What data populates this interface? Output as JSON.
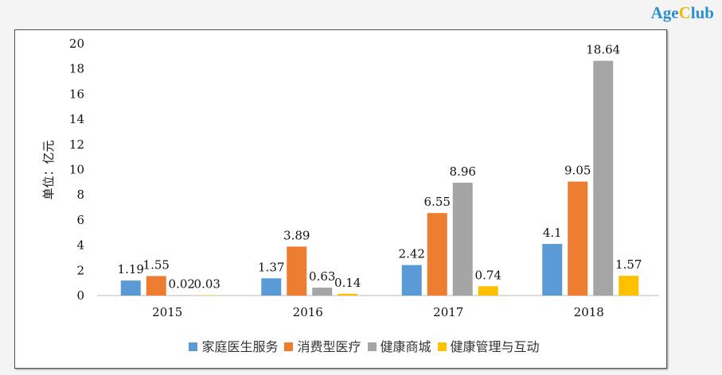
{
  "logo": {
    "a": "Age",
    "b": "C",
    "c": "lub"
  },
  "chart_data": {
    "type": "bar",
    "categories": [
      "2015",
      "2016",
      "2017",
      "2018"
    ],
    "ylabel": "单位：亿元",
    "ylim": [
      0,
      20
    ],
    "yticks": [
      0,
      2,
      4,
      6,
      8,
      10,
      12,
      14,
      16,
      18,
      20
    ],
    "legend_position": "bottom",
    "series": [
      {
        "name": "家庭医生服务",
        "color": "#5b9bd5",
        "values": [
          1.19,
          1.37,
          2.42,
          4.1
        ]
      },
      {
        "name": "消费型医疗",
        "color": "#ed7d31",
        "values": [
          1.55,
          3.89,
          6.55,
          9.05
        ]
      },
      {
        "name": "健康商城",
        "color": "#a5a5a5",
        "values": [
          0.02,
          0.63,
          8.96,
          18.64
        ]
      },
      {
        "name": "健康管理与互动",
        "color": "#ffc000",
        "values": [
          0.03,
          0.14,
          0.74,
          1.57
        ]
      }
    ]
  }
}
